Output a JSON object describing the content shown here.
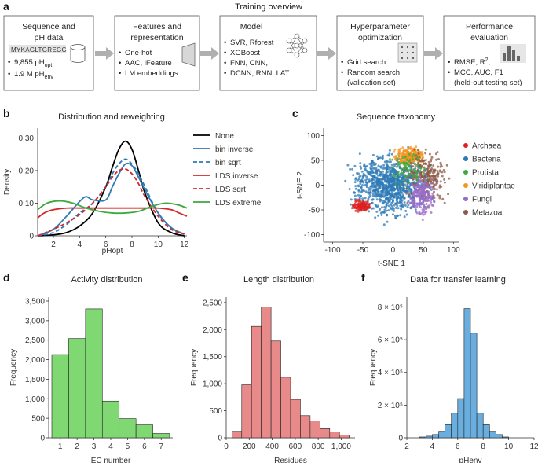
{
  "panels": {
    "a": {
      "letter": "a",
      "title": "Training overview",
      "boxes": [
        {
          "title1": "Sequence and",
          "title2": "pH data",
          "seq": "MYKAGLTGREGG",
          "items": [
            "9,855 pH",
            "1.9 M pH"
          ],
          "subs": [
            "opt",
            "env"
          ]
        },
        {
          "title1": "Features and",
          "title2": "representation",
          "items": [
            "One-hot",
            "AAC, iFeature",
            "LM embeddings"
          ]
        },
        {
          "title1": "Model",
          "title2": "",
          "items": [
            "SVR, Rforest",
            "XGBoost",
            "FNN, CNN,",
            "DCNN, RNN, LAT"
          ]
        },
        {
          "title1": "Hyperparameter",
          "title2": "optimization",
          "items": [
            "Grid search",
            "Random search",
            "(validation set)"
          ]
        },
        {
          "title1": "Performance",
          "title2": "evaluation",
          "items": [
            "RMSE, R",
            "MCC, AUC, F1",
            "(held-out testing set)"
          ],
          "sup": "2"
        }
      ]
    },
    "b": {
      "letter": "b",
      "title": "Distribution and reweighting",
      "xlabel": "pHopt",
      "ylabel": "Density"
    },
    "c": {
      "letter": "c",
      "title": "Sequence taxonomy",
      "xlabel": "t-SNE 1",
      "ylabel": "t-SNE 2"
    },
    "d": {
      "letter": "d",
      "title": "Activity distribution",
      "xlabel": "EC number",
      "ylabel": "Frequency"
    },
    "e": {
      "letter": "e",
      "title": "Length distribution",
      "xlabel": "Residues",
      "ylabel": "Frequency"
    },
    "f": {
      "letter": "f",
      "title": "Data for transfer learning",
      "xlabel": "pHenv",
      "ylabel": "Frequency"
    }
  },
  "chart_data": [
    {
      "id": "b",
      "type": "line",
      "title": "Distribution and reweighting",
      "xlabel": "pHopt",
      "ylabel": "Density",
      "xlim": [
        0.8,
        12.2
      ],
      "ylim": [
        0,
        0.33
      ],
      "xticks": [
        2,
        4,
        6,
        8,
        10,
        12
      ],
      "yticks": [
        0,
        0.1,
        0.2,
        0.3
      ],
      "ytick_labels": [
        "0",
        "0.10",
        "0.20",
        "0.30"
      ],
      "legend": "right",
      "series": [
        {
          "name": "None",
          "color": "#000000",
          "dash": false,
          "x": [
            0.8,
            2,
            3,
            4,
            5,
            6,
            6.5,
            7,
            7.5,
            8,
            8.5,
            9,
            10,
            11,
            12
          ],
          "y": [
            0.0,
            0.003,
            0.01,
            0.03,
            0.07,
            0.15,
            0.21,
            0.265,
            0.29,
            0.265,
            0.2,
            0.13,
            0.04,
            0.01,
            0.0
          ]
        },
        {
          "name": "bin inverse",
          "color": "#2e7ab5",
          "dash": false,
          "x": [
            0.8,
            2,
            3,
            4,
            4.5,
            5,
            6,
            6.5,
            7,
            7.5,
            8,
            8.5,
            9,
            10,
            11,
            12
          ],
          "y": [
            0.0,
            0.02,
            0.06,
            0.105,
            0.12,
            0.11,
            0.11,
            0.15,
            0.19,
            0.22,
            0.215,
            0.18,
            0.14,
            0.07,
            0.025,
            0.005
          ]
        },
        {
          "name": "bin sqrt",
          "color": "#2e7ab5",
          "dash": true,
          "x": [
            0.8,
            2,
            3,
            4,
            5,
            6,
            6.5,
            7,
            7.5,
            8,
            8.5,
            9,
            10,
            11,
            12
          ],
          "y": [
            0.0,
            0.01,
            0.035,
            0.07,
            0.1,
            0.15,
            0.19,
            0.22,
            0.235,
            0.22,
            0.19,
            0.15,
            0.07,
            0.025,
            0.005
          ]
        },
        {
          "name": "LDS inverse",
          "color": "#d62728",
          "dash": false,
          "x": [
            0.8,
            1.3,
            2,
            3,
            4,
            5,
            6,
            7,
            8,
            9,
            10,
            11,
            11.6,
            12.2
          ],
          "y": [
            0.055,
            0.07,
            0.08,
            0.085,
            0.085,
            0.085,
            0.085,
            0.085,
            0.085,
            0.085,
            0.085,
            0.08,
            0.07,
            0.06
          ]
        },
        {
          "name": "LDS sqrt",
          "color": "#d62728",
          "dash": true,
          "x": [
            0.8,
            2,
            3,
            4,
            5,
            6,
            6.5,
            7,
            7.5,
            8,
            8.5,
            9,
            10,
            11,
            12
          ],
          "y": [
            0.0,
            0.02,
            0.04,
            0.065,
            0.1,
            0.15,
            0.18,
            0.2,
            0.205,
            0.19,
            0.16,
            0.12,
            0.06,
            0.02,
            0.005
          ]
        },
        {
          "name": "LDS extreme",
          "color": "#3caa3c",
          "dash": false,
          "x": [
            0.8,
            1.5,
            2.5,
            3.5,
            4.5,
            5.5,
            6.5,
            7.5,
            8.5,
            9.5,
            10.5,
            11.5,
            12.2
          ],
          "y": [
            0.08,
            0.1,
            0.107,
            0.1,
            0.085,
            0.075,
            0.07,
            0.07,
            0.075,
            0.09,
            0.1,
            0.095,
            0.085
          ]
        }
      ]
    },
    {
      "id": "c",
      "type": "scatter",
      "title": "Sequence taxonomy",
      "xlabel": "t-SNE 1",
      "ylabel": "t-SNE 2",
      "xlim": [
        -115,
        110
      ],
      "ylim": [
        -115,
        115
      ],
      "xticks": [
        -100,
        -50,
        0,
        50,
        100
      ],
      "yticks": [
        -100,
        -50,
        0,
        50,
        100
      ],
      "legend": "right",
      "series": [
        {
          "name": "Archaea",
          "color": "#e02020",
          "cx": -52,
          "cy": -42,
          "sx": 9,
          "sy": 7,
          "n": 130
        },
        {
          "name": "Bacteria",
          "color": "#2e7ab5",
          "cx": -5,
          "cy": 0,
          "sx": 38,
          "sy": 38,
          "n": 950
        },
        {
          "name": "Protista",
          "color": "#3caa3c",
          "cx": 25,
          "cy": 35,
          "sx": 20,
          "sy": 20,
          "n": 80
        },
        {
          "name": "Viridiplantae",
          "color": "#f5951f",
          "cx": 28,
          "cy": 58,
          "sx": 16,
          "sy": 11,
          "n": 250
        },
        {
          "name": "Fungi",
          "color": "#9b6cc9",
          "cx": 48,
          "cy": -22,
          "sx": 14,
          "sy": 26,
          "n": 200
        },
        {
          "name": "Metazoa",
          "color": "#8c5a46",
          "cx": 55,
          "cy": 18,
          "sx": 22,
          "sy": 32,
          "n": 260
        }
      ]
    },
    {
      "id": "d",
      "type": "bar",
      "title": "Activity distribution",
      "xlabel": "EC number",
      "ylabel": "Frequency",
      "color": "#7fd872",
      "categories": [
        1,
        2,
        3,
        4,
        5,
        6,
        7
      ],
      "values": [
        2130,
        2540,
        3300,
        940,
        490,
        330,
        110
      ],
      "ylim": [
        0,
        3600
      ],
      "yticks": [
        0,
        500,
        1000,
        1500,
        2000,
        2500,
        3000,
        3500
      ],
      "ytick_labels": [
        "0",
        "500",
        "1,000",
        "1,500",
        "2,000",
        "2,500",
        "3,000",
        "3,500"
      ]
    },
    {
      "id": "e",
      "type": "bar",
      "title": "Length distribution",
      "xlabel": "Residues",
      "ylabel": "Frequency",
      "color": "#e88a8a",
      "bin_edges": [
        50,
        135,
        220,
        305,
        390,
        475,
        560,
        645,
        730,
        815,
        900,
        985,
        1070
      ],
      "values": [
        120,
        980,
        2060,
        2420,
        1790,
        1120,
        710,
        410,
        310,
        170,
        110,
        50
      ],
      "xlim": [
        0,
        1120
      ],
      "xticks": [
        0,
        200,
        400,
        600,
        800,
        1000
      ],
      "xtick_labels": [
        "0",
        "200",
        "400",
        "600",
        "800",
        "1,000"
      ],
      "ylim": [
        0,
        2600
      ],
      "yticks": [
        0,
        500,
        1000,
        1500,
        2000,
        2500
      ],
      "ytick_labels": [
        "0",
        "500",
        "1,000",
        "1,500",
        "2,000",
        "2,500"
      ]
    },
    {
      "id": "f",
      "type": "bar",
      "title": "Data for transfer learning",
      "xlabel": "pHenv",
      "ylabel": "Frequency",
      "color": "#6aaee0",
      "bin_edges": [
        3,
        3.5,
        4,
        4.5,
        5,
        5.5,
        6,
        6.5,
        7,
        7.5,
        8,
        8.5,
        9,
        9.5,
        10
      ],
      "values": [
        5000,
        10000,
        20000,
        40000,
        80000,
        150000,
        240000,
        790000,
        640000,
        150000,
        80000,
        40000,
        20000,
        5000
      ],
      "xlim": [
        2,
        12
      ],
      "xticks": [
        2,
        4,
        6,
        8,
        10,
        12
      ],
      "ylim": [
        0,
        860000
      ],
      "yticks": [
        0,
        200000,
        400000,
        600000,
        800000
      ],
      "ytick_labels": [
        "0",
        "2 × 10⁵",
        "4 × 10⁵",
        "6 × 10⁵",
        "8 × 10⁵"
      ]
    }
  ]
}
